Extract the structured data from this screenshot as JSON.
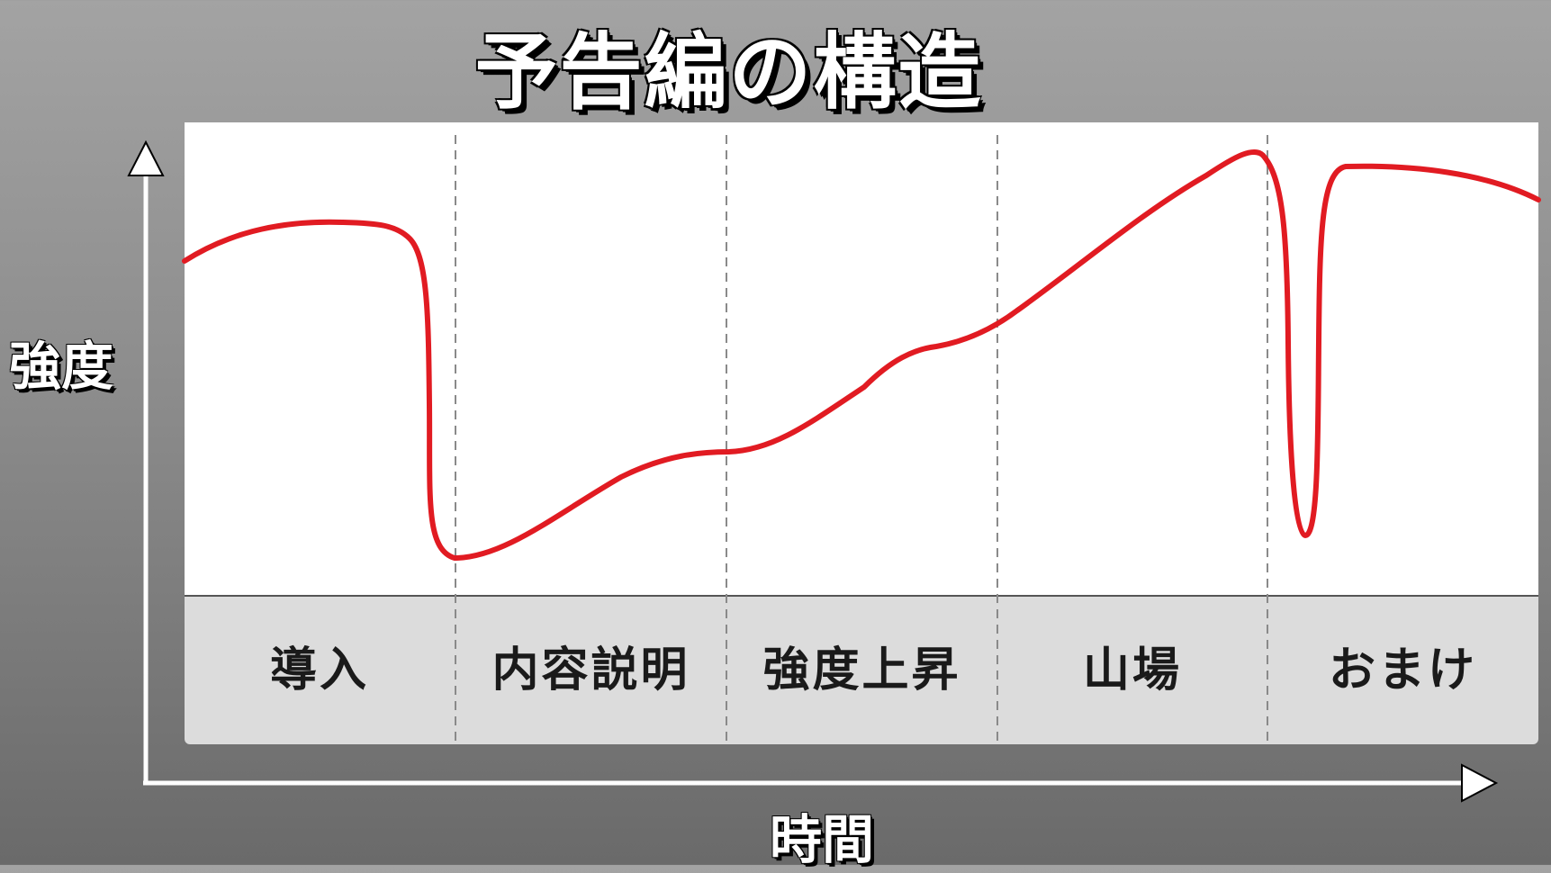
{
  "title": "予告編の構造",
  "y_axis_label": "強度",
  "x_axis_label": "時間",
  "phases": [
    {
      "label": "導入"
    },
    {
      "label": "内容説明"
    },
    {
      "label": "強度上昇"
    },
    {
      "label": "山場"
    },
    {
      "label": "おまけ"
    }
  ],
  "colors": {
    "curve": "#e11b22",
    "panel": "#ffffff",
    "band": "#dcdcdc",
    "divider": "#8a8a8a"
  }
}
